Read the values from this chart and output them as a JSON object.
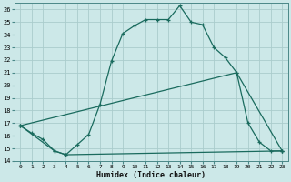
{
  "xlabel": "Humidex (Indice chaleur)",
  "bg_color": "#cce8e8",
  "grid_color": "#aacccc",
  "line_color": "#1a6b5e",
  "xlim": [
    -0.5,
    23.5
  ],
  "ylim": [
    14,
    26.5
  ],
  "xticks": [
    0,
    1,
    2,
    3,
    4,
    5,
    6,
    7,
    8,
    9,
    10,
    11,
    12,
    13,
    14,
    15,
    16,
    17,
    18,
    19,
    20,
    21,
    22,
    23
  ],
  "yticks": [
    14,
    15,
    16,
    17,
    18,
    19,
    20,
    21,
    22,
    23,
    24,
    25,
    26
  ],
  "line1_x": [
    0,
    1,
    2,
    3,
    4,
    5,
    6,
    7,
    8,
    9,
    10,
    11,
    12,
    13,
    14,
    15,
    16,
    17,
    18,
    19,
    20,
    21,
    22,
    23
  ],
  "line1_y": [
    16.8,
    16.2,
    15.7,
    14.8,
    14.5,
    15.3,
    16.1,
    18.5,
    21.9,
    24.1,
    24.7,
    25.2,
    25.2,
    25.2,
    26.3,
    25.0,
    24.8,
    23.0,
    22.2,
    21.0,
    17.0,
    15.5,
    14.8,
    14.8
  ],
  "line2_x": [
    0,
    3,
    4,
    23
  ],
  "line2_y": [
    16.8,
    14.8,
    14.5,
    14.8
  ],
  "line3_x": [
    0,
    19,
    23
  ],
  "line3_y": [
    16.8,
    21.0,
    14.8
  ]
}
